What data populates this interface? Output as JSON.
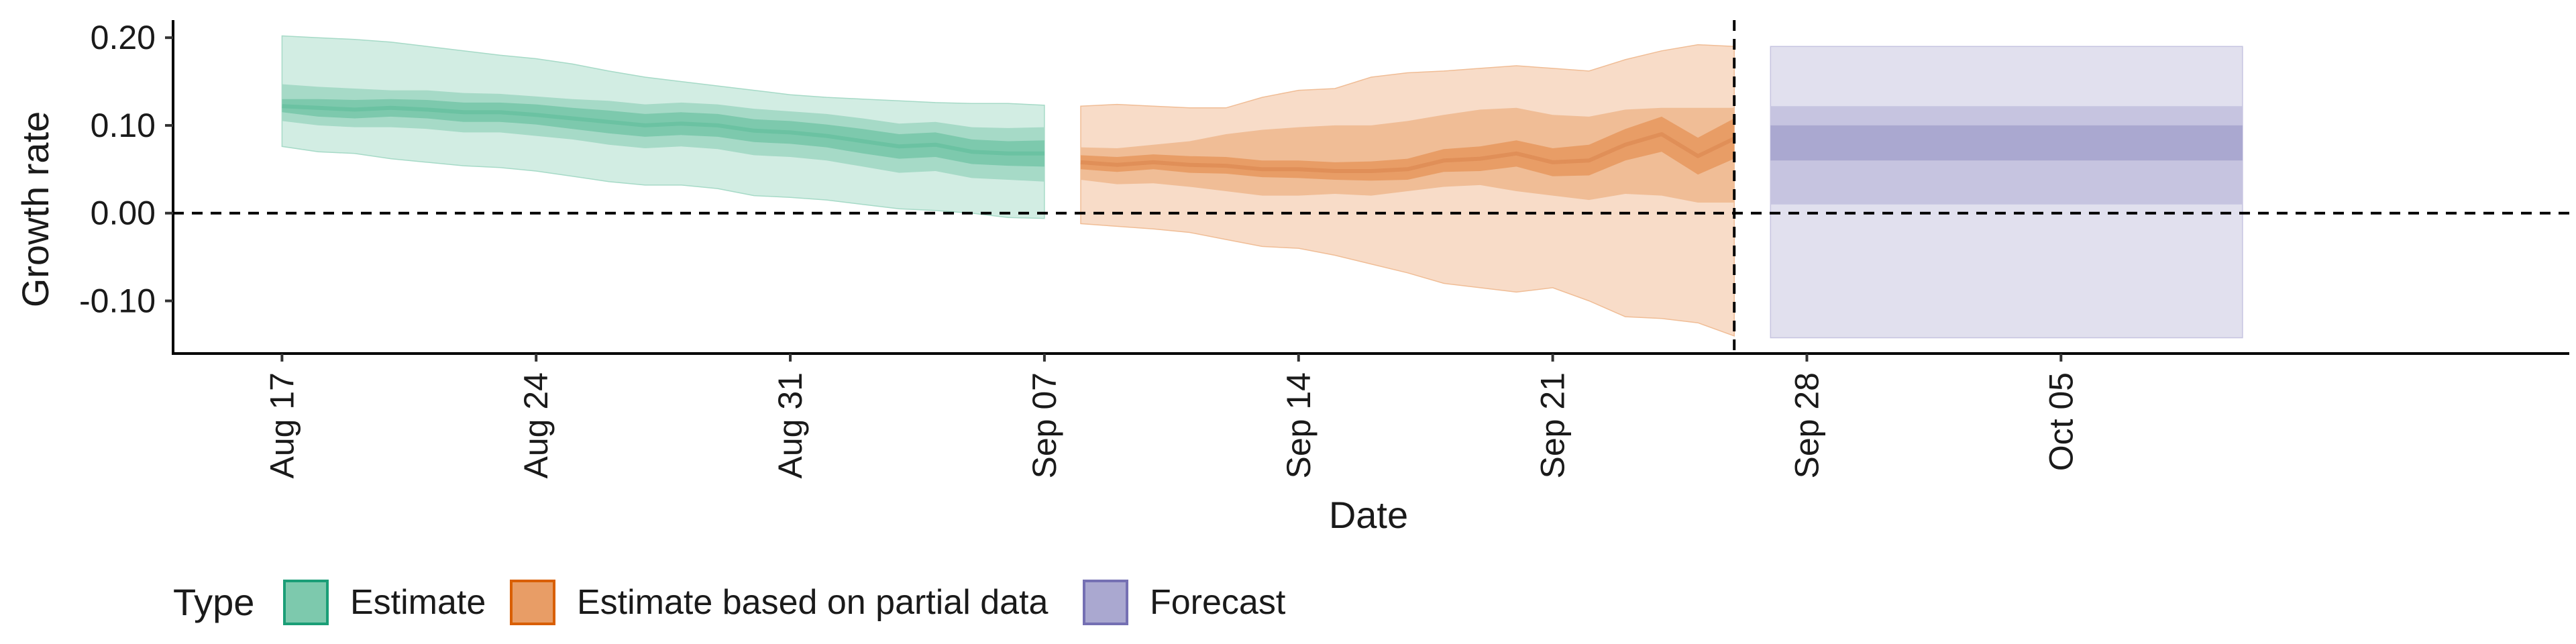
{
  "chart_data": {
    "type": "area",
    "title": "",
    "xlabel": "Date",
    "ylabel": "Growth rate",
    "ylim": [
      -0.16,
      0.22
    ],
    "xlim": [
      "2020-08-14",
      "2020-10-19"
    ],
    "y_ticks": [
      -0.1,
      0.0,
      0.1,
      0.2
    ],
    "y_tick_labels": [
      "-0.10",
      "0.00",
      "0.10",
      "0.20"
    ],
    "x_ticks": [
      "2020-08-17",
      "2020-08-24",
      "2020-08-31",
      "2020-09-07",
      "2020-09-14",
      "2020-09-21",
      "2020-09-28",
      "2020-10-05"
    ],
    "x_tick_labels": [
      "Aug 17",
      "Aug 24",
      "Aug 31",
      "Sep 07",
      "Sep 14",
      "Sep 21",
      "Sep 28",
      "Oct 05"
    ],
    "reference_lines": {
      "horizontal_y": 0.0,
      "vertical_date": "2020-09-26"
    },
    "grid": false,
    "legend": {
      "title": "Type",
      "position": "bottom",
      "entries": [
        {
          "label": "Estimate",
          "fill": "#7dc9ad",
          "border": "#1b9e77"
        },
        {
          "label": "Estimate based on partial data",
          "fill": "#e89d66",
          "border": "#d95f02"
        },
        {
          "label": "Forecast",
          "fill": "#aaa8d0",
          "border": "#7570b3"
        }
      ]
    },
    "series": [
      {
        "name": "Estimate",
        "color": "#1b9e77",
        "x": [
          "2020-08-17",
          "2020-08-18",
          "2020-08-19",
          "2020-08-20",
          "2020-08-21",
          "2020-08-22",
          "2020-08-23",
          "2020-08-24",
          "2020-08-25",
          "2020-08-26",
          "2020-08-27",
          "2020-08-28",
          "2020-08-29",
          "2020-08-30",
          "2020-08-31",
          "2020-09-01",
          "2020-09-02",
          "2020-09-03",
          "2020-09-04",
          "2020-09-05",
          "2020-09-06",
          "2020-09-07"
        ],
        "median": [
          0.122,
          0.12,
          0.118,
          0.12,
          0.118,
          0.115,
          0.115,
          0.112,
          0.108,
          0.104,
          0.1,
          0.102,
          0.1,
          0.094,
          0.092,
          0.088,
          0.082,
          0.076,
          0.078,
          0.07,
          0.068,
          0.068
        ],
        "lower_20": [
          0.115,
          0.11,
          0.108,
          0.11,
          0.108,
          0.104,
          0.104,
          0.101,
          0.096,
          0.091,
          0.087,
          0.089,
          0.087,
          0.081,
          0.079,
          0.075,
          0.068,
          0.062,
          0.064,
          0.056,
          0.054,
          0.053
        ],
        "upper_20": [
          0.13,
          0.13,
          0.129,
          0.13,
          0.129,
          0.126,
          0.126,
          0.124,
          0.12,
          0.117,
          0.113,
          0.115,
          0.113,
          0.107,
          0.105,
          0.101,
          0.096,
          0.09,
          0.092,
          0.084,
          0.082,
          0.083
        ],
        "lower_50": [
          0.105,
          0.1,
          0.098,
          0.098,
          0.096,
          0.092,
          0.092,
          0.088,
          0.084,
          0.078,
          0.074,
          0.076,
          0.073,
          0.066,
          0.064,
          0.06,
          0.053,
          0.046,
          0.048,
          0.04,
          0.038,
          0.036
        ],
        "upper_50": [
          0.147,
          0.144,
          0.142,
          0.14,
          0.14,
          0.137,
          0.136,
          0.133,
          0.13,
          0.128,
          0.124,
          0.126,
          0.124,
          0.119,
          0.116,
          0.113,
          0.108,
          0.102,
          0.104,
          0.098,
          0.097,
          0.098
        ],
        "lower_90": [
          0.076,
          0.07,
          0.068,
          0.062,
          0.058,
          0.054,
          0.052,
          0.048,
          0.042,
          0.036,
          0.032,
          0.032,
          0.028,
          0.02,
          0.018,
          0.015,
          0.01,
          0.005,
          0.003,
          0.0,
          -0.005,
          -0.006
        ],
        "upper_90": [
          0.202,
          0.2,
          0.198,
          0.195,
          0.19,
          0.185,
          0.18,
          0.176,
          0.17,
          0.162,
          0.155,
          0.15,
          0.145,
          0.14,
          0.135,
          0.132,
          0.13,
          0.128,
          0.126,
          0.125,
          0.125,
          0.123
        ]
      },
      {
        "name": "Estimate based on partial data",
        "color": "#d95f02",
        "x": [
          "2020-09-08",
          "2020-09-09",
          "2020-09-10",
          "2020-09-11",
          "2020-09-12",
          "2020-09-13",
          "2020-09-14",
          "2020-09-15",
          "2020-09-16",
          "2020-09-17",
          "2020-09-18",
          "2020-09-19",
          "2020-09-20",
          "2020-09-21",
          "2020-09-22",
          "2020-09-23",
          "2020-09-24",
          "2020-09-25",
          "2020-09-26"
        ],
        "median": [
          0.058,
          0.055,
          0.058,
          0.055,
          0.054,
          0.05,
          0.05,
          0.048,
          0.048,
          0.05,
          0.06,
          0.062,
          0.068,
          0.058,
          0.06,
          0.078,
          0.09,
          0.065,
          0.085
        ],
        "lower_20": [
          0.05,
          0.047,
          0.05,
          0.046,
          0.045,
          0.041,
          0.04,
          0.038,
          0.037,
          0.038,
          0.047,
          0.048,
          0.053,
          0.042,
          0.043,
          0.06,
          0.07,
          0.044,
          0.062
        ],
        "upper_20": [
          0.066,
          0.064,
          0.067,
          0.065,
          0.064,
          0.06,
          0.06,
          0.058,
          0.059,
          0.062,
          0.073,
          0.076,
          0.083,
          0.074,
          0.078,
          0.096,
          0.11,
          0.086,
          0.108
        ],
        "lower_50": [
          0.038,
          0.033,
          0.034,
          0.03,
          0.025,
          0.02,
          0.02,
          0.022,
          0.02,
          0.025,
          0.03,
          0.032,
          0.025,
          0.02,
          0.015,
          0.022,
          0.02,
          0.012,
          0.012
        ],
        "upper_50": [
          0.075,
          0.074,
          0.078,
          0.082,
          0.09,
          0.095,
          0.098,
          0.1,
          0.1,
          0.105,
          0.112,
          0.118,
          0.12,
          0.112,
          0.11,
          0.118,
          0.12,
          0.12,
          0.12
        ],
        "lower_90": [
          -0.012,
          -0.015,
          -0.018,
          -0.022,
          -0.03,
          -0.038,
          -0.04,
          -0.048,
          -0.058,
          -0.068,
          -0.08,
          -0.085,
          -0.09,
          -0.085,
          -0.1,
          -0.118,
          -0.12,
          -0.125,
          -0.14
        ],
        "upper_90": [
          0.122,
          0.124,
          0.122,
          0.12,
          0.12,
          0.132,
          0.14,
          0.142,
          0.155,
          0.16,
          0.162,
          0.165,
          0.168,
          0.165,
          0.162,
          0.175,
          0.185,
          0.192,
          0.19
        ]
      },
      {
        "name": "Forecast",
        "color": "#7570b3",
        "x": [
          "2020-09-27",
          "2020-10-10"
        ],
        "median": [
          0.08,
          0.08
        ],
        "lower_20": [
          0.06,
          0.06
        ],
        "upper_20": [
          0.1,
          0.1
        ],
        "lower_50": [
          0.01,
          0.01
        ],
        "upper_50": [
          0.122,
          0.122
        ],
        "lower_90": [
          -0.142,
          -0.142
        ],
        "upper_90": [
          0.19,
          0.19
        ]
      }
    ]
  }
}
